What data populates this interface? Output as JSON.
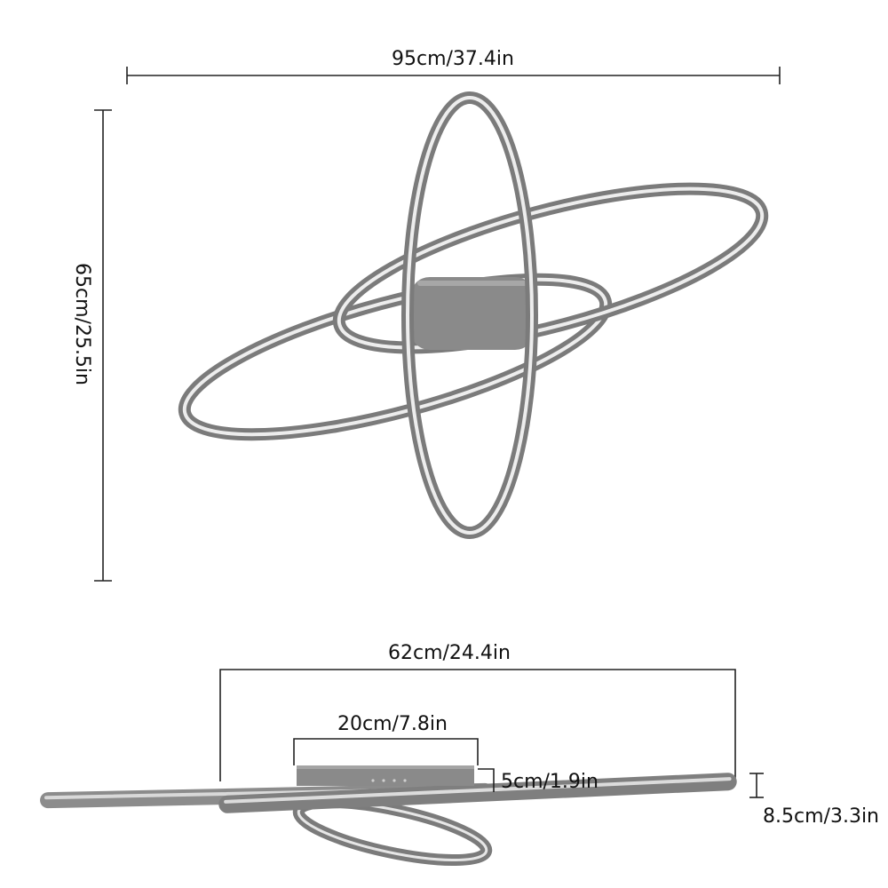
{
  "dimensions": {
    "overall_width": "95cm/37.4in",
    "overall_height": "65cm/25.5in",
    "ring_length": "62cm/24.4in",
    "base_width": "20cm/7.8in",
    "base_height": "5cm/1.9in",
    "total_depth": "8.5cm/3.3in"
  },
  "colors": {
    "frame": "#7b7b7b",
    "frame_highlight": "#ededed",
    "base": "#8a8a8a",
    "dimension_lines": "#222222",
    "background": "#ffffff"
  }
}
